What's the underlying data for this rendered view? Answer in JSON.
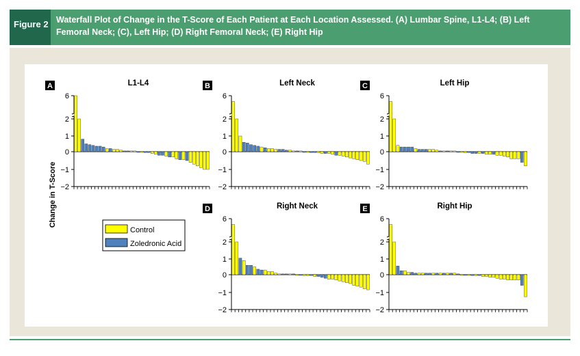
{
  "figure": {
    "label": "Figure 2",
    "caption": "Waterfall Plot of Change in the T-Score of Each Patient at Each Location Assessed. (A) Lumbar Spine, L1-L4; (B) Left Femoral Neck; (C), Left Hip; (D) Right Femoral Neck; (E) Right Hip"
  },
  "colors": {
    "header_bg": "#4b9e6f",
    "label_bg": "#21674b",
    "panel_bg": "#ebe6da",
    "control": "#ffff00",
    "zoledronic": "#4f81bd"
  },
  "legend": {
    "items": [
      {
        "label": "Control",
        "color": "#ffff00"
      },
      {
        "label": "Zoledronic Acid",
        "color": "#4f81bd"
      }
    ]
  },
  "shared_ylabel": "Change in T-Score",
  "chart_data": [
    {
      "type": "bar",
      "letter": "A",
      "title": "L1-L4",
      "yticks": [
        "6",
        "2",
        "1",
        "0",
        "−1",
        "−2"
      ],
      "ylim": [
        -2,
        6
      ],
      "axis_break": true,
      "values": [
        6,
        2,
        0.8,
        0.5,
        0.45,
        0.4,
        0.35,
        0.35,
        0.3,
        0.2,
        0.2,
        0.15,
        0.15,
        0.1,
        0.05,
        0.05,
        0.05,
        0.05,
        0,
        0,
        -0.05,
        -0.05,
        -0.1,
        -0.15,
        -0.2,
        -0.2,
        -0.25,
        -0.3,
        -0.3,
        -0.4,
        -0.45,
        -0.45,
        -0.5,
        -0.6,
        -0.7,
        -0.8,
        -0.9,
        -1.0,
        -1.0
      ],
      "groups": [
        "C",
        "C",
        "Z",
        "Z",
        "Z",
        "Z",
        "Z",
        "Z",
        "Z",
        "C",
        "Z",
        "C",
        "C",
        "C",
        "Z",
        "Z",
        "C",
        "C",
        "Z",
        "C",
        "Z",
        "Z",
        "C",
        "C",
        "Z",
        "Z",
        "C",
        "Z",
        "C",
        "C",
        "Z",
        "C",
        "Z",
        "C",
        "C",
        "C",
        "C",
        "C",
        "C"
      ]
    },
    {
      "type": "bar",
      "letter": "B",
      "title": "Left Neck",
      "yticks": [
        "6",
        "2",
        "1",
        "0",
        "−1",
        "−2"
      ],
      "ylim": [
        -2,
        6
      ],
      "axis_break": true,
      "values": [
        5,
        2,
        1,
        0.6,
        0.55,
        0.45,
        0.4,
        0.35,
        0.3,
        0.25,
        0.2,
        0.2,
        0.15,
        0.15,
        0.15,
        0.1,
        0.1,
        0.05,
        0.05,
        0.05,
        0,
        0,
        -0.05,
        -0.05,
        -0.05,
        -0.1,
        -0.1,
        -0.1,
        -0.15,
        -0.2,
        -0.2,
        -0.25,
        -0.3,
        -0.35,
        -0.4,
        -0.45,
        -0.5,
        -0.55,
        -0.7
      ],
      "groups": [
        "C",
        "C",
        "C",
        "Z",
        "Z",
        "Z",
        "Z",
        "Z",
        "C",
        "Z",
        "C",
        "C",
        "C",
        "Z",
        "Z",
        "Z",
        "C",
        "C",
        "Z",
        "C",
        "Z",
        "C",
        "Z",
        "Z",
        "C",
        "C",
        "Z",
        "C",
        "C",
        "Z",
        "C",
        "C",
        "C",
        "C",
        "C",
        "C",
        "C",
        "C",
        "C"
      ]
    },
    {
      "type": "bar",
      "letter": "C",
      "title": "Left Hip",
      "yticks": [
        "6",
        "2",
        "1",
        "0",
        "−1",
        "−2"
      ],
      "ylim": [
        -2,
        6
      ],
      "axis_break": true,
      "values": [
        5,
        2,
        0.4,
        0.3,
        0.3,
        0.3,
        0.3,
        0.2,
        0.15,
        0.15,
        0.15,
        0.15,
        0.15,
        0.1,
        0.05,
        0.05,
        0.05,
        0.05,
        0.05,
        0,
        0,
        -0.05,
        -0.05,
        -0.1,
        -0.1,
        -0.1,
        -0.1,
        -0.15,
        -0.15,
        -0.15,
        -0.2,
        -0.2,
        -0.25,
        -0.3,
        -0.4,
        -0.4,
        -0.4,
        -0.6,
        -0.8
      ],
      "groups": [
        "C",
        "C",
        "C",
        "Z",
        "Z",
        "Z",
        "Z",
        "C",
        "Z",
        "Z",
        "Z",
        "C",
        "C",
        "C",
        "Z",
        "C",
        "Z",
        "C",
        "C",
        "Z",
        "C",
        "C",
        "Z",
        "Z",
        "Z",
        "C",
        "Z",
        "C",
        "C",
        "Z",
        "C",
        "C",
        "C",
        "C",
        "C",
        "C",
        "C",
        "Z",
        "C"
      ]
    },
    {
      "type": "bar",
      "letter": "D",
      "title": "Right Neck",
      "yticks": [
        "6",
        "2",
        "1",
        "0",
        "−1",
        "−2"
      ],
      "ylim": [
        -2,
        6
      ],
      "axis_break": true,
      "values": [
        5,
        2,
        1.05,
        0.9,
        0.6,
        0.6,
        0.5,
        0.35,
        0.3,
        0.3,
        0.2,
        0.2,
        0.1,
        0.05,
        0.05,
        0.05,
        0.05,
        0.05,
        0,
        0,
        -0.05,
        -0.05,
        -0.05,
        -0.1,
        -0.1,
        -0.15,
        -0.2,
        -0.25,
        -0.25,
        -0.3,
        -0.35,
        -0.4,
        -0.45,
        -0.5,
        -0.6,
        -0.65,
        -0.7,
        -0.8,
        -0.85
      ],
      "groups": [
        "C",
        "C",
        "Z",
        "C",
        "Z",
        "Z",
        "C",
        "Z",
        "Z",
        "C",
        "C",
        "C",
        "C",
        "C",
        "Z",
        "Z",
        "C",
        "Z",
        "C",
        "Z",
        "C",
        "C",
        "Z",
        "C",
        "Z",
        "Z",
        "Z",
        "C",
        "C",
        "C",
        "C",
        "C",
        "C",
        "C",
        "C",
        "C",
        "C",
        "C",
        "C"
      ]
    },
    {
      "type": "bar",
      "letter": "E",
      "title": "Right Hip",
      "yticks": [
        "6",
        "2",
        "1",
        "0",
        "−1",
        "−2"
      ],
      "ylim": [
        -2,
        6
      ],
      "axis_break": true,
      "values": [
        5,
        2,
        0.55,
        0.25,
        0.25,
        0.15,
        0.15,
        0.1,
        0.1,
        0.1,
        0.1,
        0.1,
        0.1,
        0.1,
        0.1,
        0.1,
        0.1,
        0.1,
        0.1,
        0.05,
        0,
        0,
        0,
        -0.05,
        -0.05,
        -0.05,
        -0.1,
        -0.1,
        -0.15,
        -0.15,
        -0.2,
        -0.25,
        -0.25,
        -0.3,
        -0.3,
        -0.3,
        -0.3,
        -0.6,
        -1.25
      ],
      "groups": [
        "C",
        "C",
        "Z",
        "Z",
        "C",
        "C",
        "Z",
        "Z",
        "C",
        "C",
        "Z",
        "Z",
        "C",
        "Z",
        "C",
        "Z",
        "C",
        "Z",
        "C",
        "Z",
        "C",
        "Z",
        "C",
        "Z",
        "C",
        "Z",
        "C",
        "C",
        "C",
        "C",
        "C",
        "C",
        "C",
        "C",
        "C",
        "C",
        "C",
        "Z",
        "C"
      ]
    }
  ]
}
